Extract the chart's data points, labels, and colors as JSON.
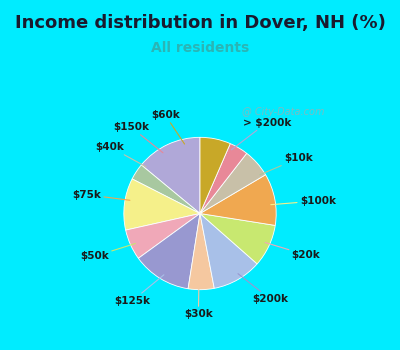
{
  "title": "Income distribution in Dover, NH (%)",
  "subtitle": "All residents",
  "bg_cyan": "#00ecff",
  "bg_chart": "#f0faf0",
  "watermark": "City-Data.com",
  "labels": [
    "> $200k",
    "$10k",
    "$100k",
    "$20k",
    "$200k",
    "$30k",
    "$125k",
    "$50k",
    "$75k",
    "$40k",
    "$150k",
    "$60k"
  ],
  "sizes": [
    14.0,
    3.5,
    11.0,
    6.5,
    12.5,
    5.5,
    10.5,
    9.0,
    11.0,
    6.0,
    4.0,
    6.5
  ],
  "colors": [
    "#b0a8d8",
    "#a8c8a0",
    "#f5f08a",
    "#f0a8b8",
    "#9898d0",
    "#f5c8a0",
    "#a8c0e8",
    "#c8e870",
    "#f0a850",
    "#c8c0a8",
    "#e88898",
    "#c8a828"
  ],
  "startangle": 90,
  "label_fontsize": 7.5,
  "title_fontsize": 13,
  "subtitle_fontsize": 10,
  "subtitle_color": "#2ab5b5",
  "title_color": "#1a1a2e"
}
